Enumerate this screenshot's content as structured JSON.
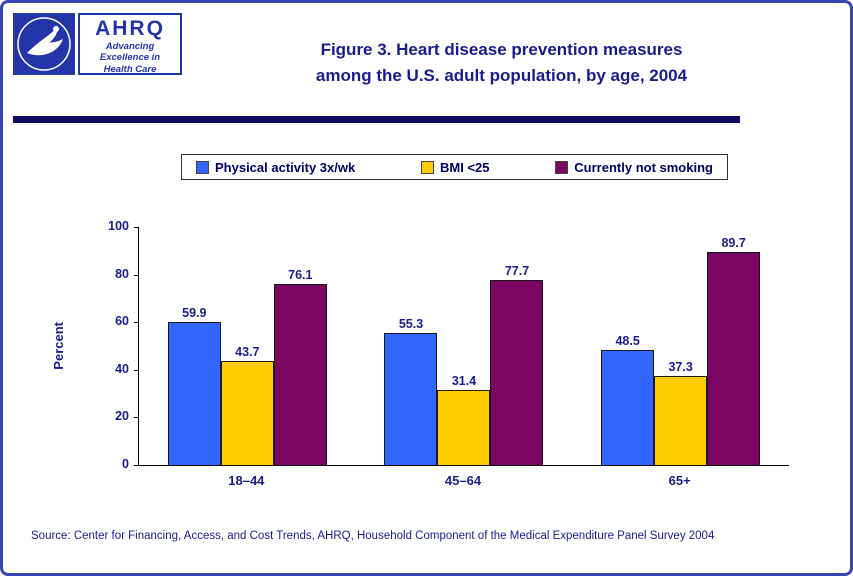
{
  "colors": {
    "navy": "#1b1b8c",
    "divider": "#0d0d66",
    "page_border": "#3a45b5",
    "logo_blue": "#2335a8",
    "legend_text": "#000066"
  },
  "logo": {
    "acronym": "AHRQ",
    "tagline_line1": "Advancing",
    "tagline_line2": "Excellence in",
    "tagline_line3": "Health Care"
  },
  "header": {
    "title_line1": "Figure 3. Heart disease prevention measures",
    "title_line2": "among the U.S. adult population, by age, 2004"
  },
  "chart_data": {
    "type": "bar",
    "categories": [
      "18–44",
      "45–64",
      "65+"
    ],
    "series": [
      {
        "name": "Physical activity 3x/wk",
        "color": "#3366FF",
        "values": [
          59.9,
          55.3,
          48.5
        ]
      },
      {
        "name": "BMI <25",
        "color": "#FFCC00",
        "values": [
          43.7,
          31.4,
          37.3
        ]
      },
      {
        "name": "Currently not smoking",
        "color": "#7B0663",
        "values": [
          76.1,
          77.7,
          89.7
        ]
      }
    ],
    "title": "Figure 3. Heart disease prevention measures among the U.S. adult population, by age, 2004",
    "xlabel": "",
    "ylabel": "Percent",
    "ylim": [
      0,
      100
    ],
    "yticks": [
      0,
      20,
      40,
      60,
      80,
      100
    ],
    "grid": false,
    "legend_position": "top"
  },
  "source": "Source: Center for Financing, Access, and Cost Trends, AHRQ, Household Component of the Medical Expenditure Panel Survey 2004"
}
